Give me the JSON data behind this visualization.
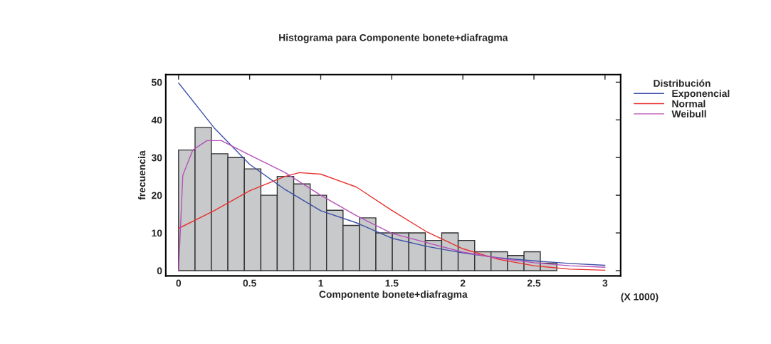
{
  "chart_data": {
    "type": "histogram",
    "title": "Histograma para Componente bonete+diafragma",
    "xlabel": "Componente bonete+diafragma",
    "ylabel": "frecuencia",
    "legend_title": "Distribución",
    "annotations": [
      "(X 1000)"
    ],
    "bins": [
      0,
      0.116,
      0.231,
      0.347,
      0.463,
      0.579,
      0.694,
      0.81,
      0.926,
      1.041,
      1.157,
      1.273,
      1.388,
      1.504,
      1.62,
      1.736,
      1.851,
      1.967,
      2.083,
      2.198,
      2.314,
      2.43,
      2.545,
      2.661
    ],
    "values": [
      32,
      38,
      31,
      30,
      27,
      20,
      25,
      23,
      20,
      16,
      12,
      14,
      10,
      10,
      10,
      8,
      10,
      8,
      5,
      5,
      4,
      5,
      2
    ],
    "color": "#c8c9cb",
    "series": [
      {
        "name": "Exponencial",
        "type": "line",
        "color": "#3c4fa8",
        "x": [
          0,
          0.25,
          0.5,
          0.75,
          1.0,
          1.25,
          1.5,
          1.75,
          2.0,
          2.25,
          2.5,
          2.75,
          3.0
        ],
        "values": [
          49.8,
          37.9,
          28.2,
          21.5,
          15.9,
          12.7,
          8.6,
          6.4,
          4.7,
          3.4,
          2.6,
          1.9,
          1.4
        ]
      },
      {
        "name": "Normal",
        "type": "line",
        "color": "#e8302c",
        "x": [
          0,
          0.25,
          0.5,
          0.75,
          0.85,
          1.0,
          1.25,
          1.5,
          1.75,
          2.0,
          2.25,
          2.5,
          2.75,
          3.0
        ],
        "values": [
          11.2,
          15.9,
          21.2,
          25.0,
          26.0,
          25.6,
          22.2,
          16.0,
          10.2,
          5.8,
          3.0,
          1.3,
          0.4,
          0.1
        ]
      },
      {
        "name": "Weibull",
        "type": "line",
        "color": "#b550b8",
        "x": [
          0,
          0.03,
          0.1,
          0.2,
          0.3,
          0.5,
          0.75,
          1.0,
          1.25,
          1.5,
          1.75,
          2.0,
          2.25,
          2.5,
          2.75,
          3.0
        ],
        "values": [
          0,
          25.3,
          32,
          34.5,
          34.5,
          30.7,
          26,
          20,
          14.6,
          9.9,
          7.4,
          4.9,
          3.3,
          2.1,
          1.3,
          0.9
        ]
      }
    ],
    "xlim": [
      -0.09,
      3.11
    ],
    "ylim": [
      -1.4,
      52
    ],
    "xticks": [
      0,
      0.5,
      1,
      1.5,
      2,
      2.5,
      3
    ],
    "yticks": [
      0,
      10,
      20,
      30,
      40,
      50
    ],
    "legend": "right",
    "grid": false
  }
}
